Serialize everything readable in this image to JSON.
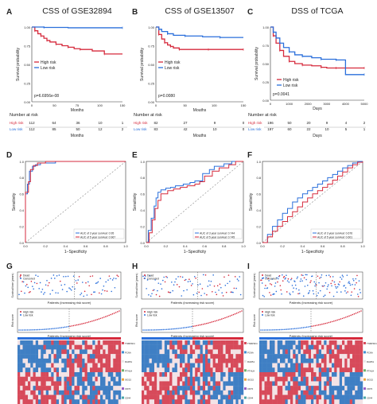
{
  "figure": {
    "panel_letters": [
      "A",
      "B",
      "C",
      "D",
      "E",
      "F",
      "G",
      "H",
      "I"
    ]
  },
  "chart_data": [
    {
      "panel": "A",
      "type": "line",
      "title": "CSS of GSE32894",
      "xlabel": "Months",
      "ylabel": "Survival probability",
      "xlim": [
        0,
        150
      ],
      "ylim": [
        0,
        1
      ],
      "xticks": [
        "0",
        "50",
        "75",
        "100",
        "150"
      ],
      "yticks": [
        "0.00",
        "0.25",
        "0.50",
        "0.75",
        "1.00"
      ],
      "pvalue": "p=6.6956e-08",
      "legend": [
        "High risk",
        "Low risk"
      ],
      "series": [
        {
          "name": "High risk",
          "color": "#d62a3c",
          "x": [
            0,
            5,
            10,
            15,
            20,
            25,
            30,
            40,
            50,
            60,
            70,
            80,
            100,
            120,
            150
          ],
          "y": [
            1,
            0.95,
            0.91,
            0.88,
            0.85,
            0.82,
            0.8,
            0.77,
            0.75,
            0.73,
            0.71,
            0.7,
            0.68,
            0.64,
            0.64
          ]
        },
        {
          "name": "Low risk",
          "color": "#2a6fdb",
          "x": [
            0,
            20,
            60,
            150
          ],
          "y": [
            1,
            0.995,
            0.99,
            0.99
          ]
        }
      ],
      "risk_table": {
        "title": "Number at risk",
        "xlabel": "Months",
        "rows": [
          {
            "label": "High risk",
            "color": "#d62a3c",
            "values": [
              "112",
              "64",
              "36",
              "10",
              "1"
            ]
          },
          {
            "label": "Low risk",
            "color": "#2a6fdb",
            "values": [
              "112",
              "85",
              "50",
              "12",
              "2"
            ]
          }
        ]
      }
    },
    {
      "panel": "B",
      "type": "line",
      "title": "CSS of GSE13507",
      "xlabel": "Mouths",
      "ylabel": "Survival probability",
      "xlim": [
        0,
        150
      ],
      "ylim": [
        0,
        1
      ],
      "xticks": [
        "0",
        "50",
        "100",
        "150"
      ],
      "yticks": [
        "0.00",
        "0.25",
        "0.50",
        "0.75",
        "1.00"
      ],
      "pvalue": "p=0.0080",
      "legend": [
        "High risk",
        "Low risk"
      ],
      "series": [
        {
          "name": "High risk",
          "color": "#d62a3c",
          "x": [
            0,
            5,
            10,
            15,
            20,
            25,
            30,
            40,
            60,
            90,
            120,
            150
          ],
          "y": [
            1,
            0.9,
            0.84,
            0.79,
            0.76,
            0.74,
            0.72,
            0.7,
            0.7,
            0.7,
            0.7,
            0.7
          ]
        },
        {
          "name": "Low risk",
          "color": "#2a6fdb",
          "x": [
            0,
            5,
            10,
            20,
            30,
            50,
            80,
            110,
            150
          ],
          "y": [
            1,
            0.97,
            0.94,
            0.91,
            0.89,
            0.88,
            0.87,
            0.86,
            0.86
          ]
        }
      ],
      "risk_table": {
        "title": "Number at risk",
        "xlabel": "Mouths",
        "rows": [
          {
            "label": "High risk",
            "color": "#d62a3c",
            "values": [
              "82",
              "27",
              "9",
              "0"
            ]
          },
          {
            "label": "Low risk",
            "color": "#2a6fdb",
            "values": [
              "83",
              "42",
              "10",
              "0"
            ]
          }
        ]
      }
    },
    {
      "panel": "C",
      "type": "line",
      "title": "DSS of TCGA",
      "xlabel": "Days",
      "ylabel": "Survival probability",
      "xlim": [
        0,
        5000
      ],
      "ylim": [
        0,
        1
      ],
      "xticks": [
        "0",
        "1000",
        "2000",
        "3000",
        "4000",
        "5000"
      ],
      "yticks": [
        "0.00",
        "0.25",
        "0.50",
        "0.75",
        "1.00"
      ],
      "pvalue": "p=0.0041",
      "legend": [
        "High risk",
        "Low risk"
      ],
      "series": [
        {
          "name": "High risk",
          "color": "#d62a3c",
          "x": [
            0,
            150,
            300,
            500,
            700,
            1000,
            1300,
            1700,
            2200,
            2700,
            3000,
            3500,
            4000,
            5000
          ],
          "y": [
            1,
            0.88,
            0.78,
            0.68,
            0.6,
            0.53,
            0.5,
            0.48,
            0.47,
            0.45,
            0.44,
            0.44,
            0.44,
            0.44
          ]
        },
        {
          "name": "Low risk",
          "color": "#2a6fdb",
          "x": [
            0,
            150,
            300,
            500,
            700,
            1000,
            1300,
            1700,
            2200,
            2700,
            3000,
            3500,
            4000,
            5000
          ],
          "y": [
            1,
            0.93,
            0.85,
            0.78,
            0.72,
            0.66,
            0.62,
            0.6,
            0.58,
            0.56,
            0.56,
            0.55,
            0.35,
            0.35
          ]
        }
      ],
      "risk_table": {
        "title": "Number at risk",
        "xlabel": "Days",
        "rows": [
          {
            "label": "High risk",
            "color": "#d62a3c",
            "values": [
              "196",
              "50",
              "20",
              "9",
              "4",
              "2"
            ]
          },
          {
            "label": "Low risk",
            "color": "#2a6fdb",
            "values": [
              "197",
              "60",
              "22",
              "10",
              "5",
              "1"
            ]
          }
        ]
      }
    },
    {
      "panel": "D",
      "type": "line",
      "xlabel": "1−Specificity",
      "ylabel": "Sensitivity",
      "xlim": [
        0,
        1
      ],
      "ylim": [
        0,
        1
      ],
      "ticks": [
        "0.0",
        "0.2",
        "0.4",
        "0.6",
        "0.8",
        "1.0"
      ],
      "legend": [
        "AUC of 3 year survival: 0.95",
        "AUC of 5 year survival: 0.967"
      ],
      "series": [
        {
          "name": "AUC of 3 year survival: 0.95",
          "color": "#2a6fdb",
          "x": [
            0,
            0,
            0.02,
            0.04,
            0.04,
            0.07,
            0.1,
            0.15,
            0.3,
            0.5,
            0.8,
            1
          ],
          "y": [
            0,
            0.6,
            0.72,
            0.8,
            0.88,
            0.94,
            0.96,
            0.98,
            1,
            1,
            1,
            1
          ]
        },
        {
          "name": "AUC of 5 year survival: 0.967",
          "color": "#d62a3c",
          "x": [
            0,
            0,
            0.03,
            0.05,
            0.05,
            0.08,
            0.12,
            0.2,
            0.4,
            0.7,
            1
          ],
          "y": [
            0,
            0.62,
            0.75,
            0.82,
            0.9,
            0.95,
            0.98,
            1,
            1,
            1,
            1
          ]
        }
      ]
    },
    {
      "panel": "E",
      "type": "line",
      "xlabel": "1−Specificity",
      "ylabel": "Sensitivity",
      "xlim": [
        0,
        1
      ],
      "ylim": [
        0,
        1
      ],
      "ticks": [
        "0.0",
        "0.2",
        "0.4",
        "0.6",
        "0.8",
        "1.0"
      ],
      "legend": [
        "AUC of 3 year survival: 0.744",
        "AUC of 5 year survival: 0.745"
      ],
      "series": [
        {
          "name": "AUC of 3 year survival: 0.744",
          "color": "#2a6fdb",
          "x": [
            0,
            0.02,
            0.05,
            0.08,
            0.1,
            0.12,
            0.15,
            0.2,
            0.25,
            0.3,
            0.38,
            0.45,
            0.5,
            0.58,
            0.65,
            0.7,
            0.8,
            0.88,
            0.95,
            1
          ],
          "y": [
            0,
            0.15,
            0.3,
            0.45,
            0.55,
            0.62,
            0.65,
            0.67,
            0.68,
            0.7,
            0.72,
            0.74,
            0.76,
            0.85,
            0.9,
            0.94,
            0.97,
            1,
            1,
            1
          ]
        },
        {
          "name": "AUC of 5 year survival: 0.745",
          "color": "#d62a3c",
          "x": [
            0,
            0.03,
            0.06,
            0.09,
            0.12,
            0.15,
            0.22,
            0.28,
            0.35,
            0.42,
            0.5,
            0.55,
            0.6,
            0.68,
            0.75,
            0.85,
            0.92,
            1
          ],
          "y": [
            0,
            0.12,
            0.28,
            0.42,
            0.52,
            0.6,
            0.64,
            0.66,
            0.68,
            0.7,
            0.72,
            0.75,
            0.82,
            0.88,
            0.92,
            0.96,
            1,
            1
          ]
        }
      ]
    },
    {
      "panel": "F",
      "type": "line",
      "xlabel": "1−Specificity",
      "ylabel": "Sensitivity",
      "xlim": [
        0,
        1
      ],
      "ylim": [
        0,
        1
      ],
      "ticks": [
        "0.0",
        "0.2",
        "0.4",
        "0.6",
        "0.8",
        "1.0"
      ],
      "legend": [
        "AUC of 3 year survival: 0.676",
        "AUC of 5 year survival: 0.601"
      ],
      "series": [
        {
          "name": "AUC of 3 year survival: 0.676",
          "color": "#2a6fdb",
          "x": [
            0,
            0.05,
            0.1,
            0.15,
            0.2,
            0.25,
            0.3,
            0.35,
            0.4,
            0.45,
            0.5,
            0.55,
            0.6,
            0.65,
            0.7,
            0.75,
            0.8,
            0.85,
            0.9,
            0.95,
            1
          ],
          "y": [
            0,
            0.1,
            0.2,
            0.28,
            0.36,
            0.42,
            0.5,
            0.55,
            0.6,
            0.64,
            0.68,
            0.72,
            0.76,
            0.8,
            0.84,
            0.88,
            0.92,
            0.95,
            0.98,
            1,
            1
          ]
        },
        {
          "name": "AUC of 5 year survival: 0.601",
          "color": "#d62a3c",
          "x": [
            0,
            0.05,
            0.1,
            0.15,
            0.2,
            0.25,
            0.3,
            0.35,
            0.4,
            0.45,
            0.5,
            0.55,
            0.6,
            0.65,
            0.7,
            0.75,
            0.8,
            0.85,
            0.9,
            0.95,
            1
          ],
          "y": [
            0,
            0.07,
            0.14,
            0.2,
            0.26,
            0.32,
            0.38,
            0.44,
            0.5,
            0.55,
            0.6,
            0.64,
            0.68,
            0.72,
            0.77,
            0.82,
            0.87,
            0.92,
            0.96,
            0.99,
            1
          ]
        }
      ]
    },
    {
      "panel": "G",
      "type": "scatter",
      "xlabel": "Patients (increasing risk score)",
      "ylabel": "Survival time (years)",
      "legend": [
        "Dead",
        "Censored"
      ],
      "risk_xlabel": "Patients (increasing risk score)",
      "risk_ylabel": "Risk score",
      "risk_legend": [
        "High risk",
        "Low risk"
      ],
      "gene_labels": [
        "TNFRSF4",
        "PCNA",
        "RAD51",
        "PTHLH",
        "ISG15",
        "CD70",
        "CD44"
      ]
    },
    {
      "panel": "H",
      "type": "scatter",
      "xlabel": "Patients (increasing risk score)",
      "ylabel": "Survival time (years)",
      "legend": [
        "Dead",
        "Censored"
      ],
      "risk_xlabel": "Patients (increasing risk score)",
      "risk_ylabel": "Risk score",
      "risk_legend": [
        "High risk",
        "Low risk"
      ],
      "gene_labels": [
        "TNFRSF4",
        "PCNA",
        "RAD51",
        "PTHLH",
        "ISG15",
        "CD70",
        "CD44"
      ]
    },
    {
      "panel": "I",
      "type": "scatter",
      "xlabel": "Patients (increasing risk score)",
      "ylabel": "Survival time (years)",
      "legend": [
        "Dead",
        "Censored"
      ],
      "risk_xlabel": "Patients (increasing risk score)",
      "risk_ylabel": "Risk score",
      "risk_legend": [
        "High risk",
        "Low risk"
      ],
      "gene_labels": [
        "TNFRSF4",
        "PCNA",
        "RAD51",
        "PTHLH",
        "ISG15",
        "CD70",
        "CD44"
      ]
    }
  ]
}
